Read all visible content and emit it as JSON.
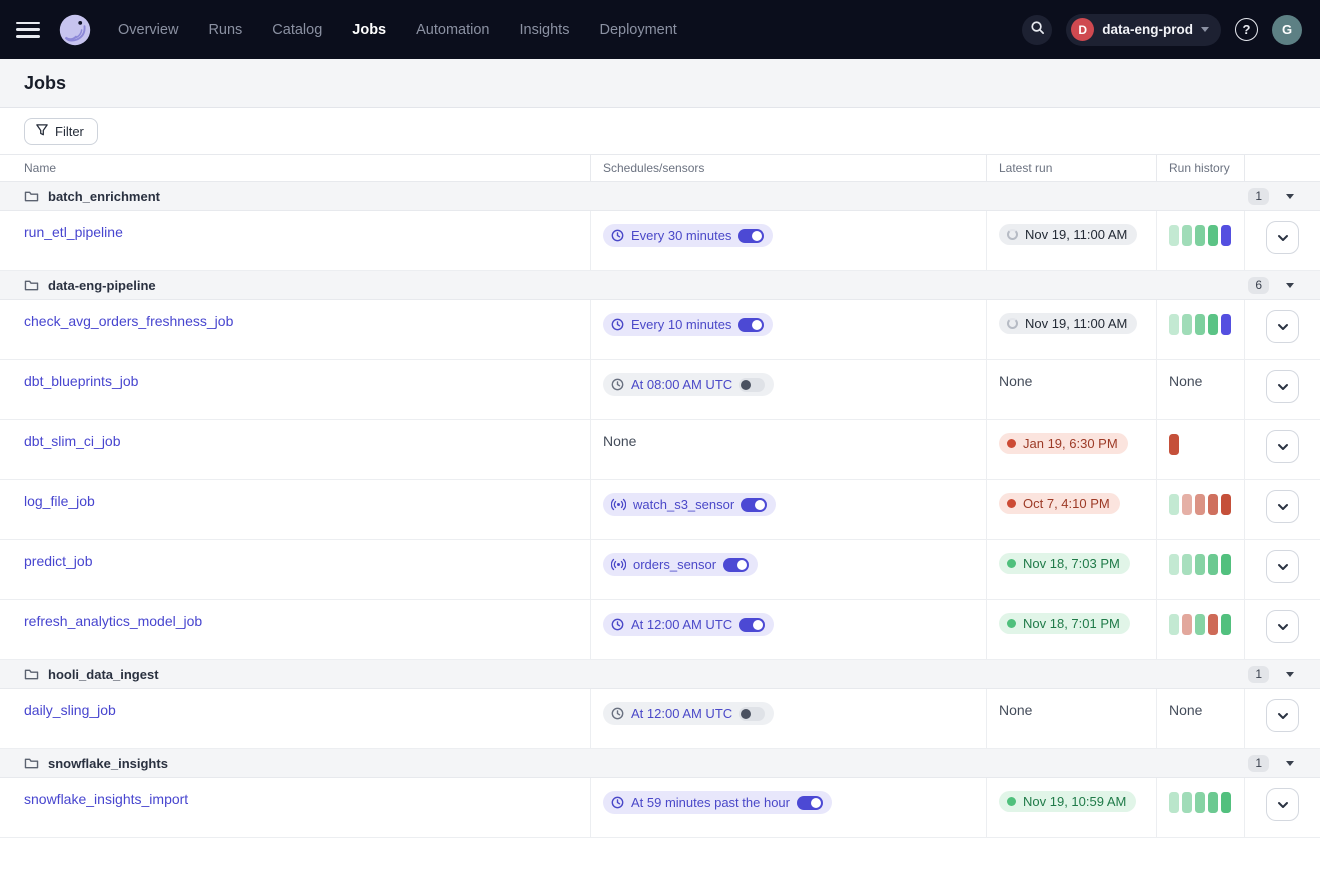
{
  "nav": {
    "items": [
      "Overview",
      "Runs",
      "Catalog",
      "Jobs",
      "Automation",
      "Insights",
      "Deployment"
    ],
    "active_item": "Jobs",
    "deployment": {
      "badge": "D",
      "label": "data-eng-prod"
    },
    "user_initial": "G"
  },
  "page": {
    "title": "Jobs",
    "filter_label": "Filter"
  },
  "table": {
    "columns": {
      "name": "Name",
      "schedules": "Schedules/sensors",
      "latest_run": "Latest run",
      "run_history": "Run history"
    },
    "none_label": "None",
    "groups": [
      {
        "name": "batch_enrichment",
        "count": "1",
        "jobs": [
          {
            "name": "run_etl_pipeline",
            "schedule": {
              "kind": "schedule",
              "label": "Every 30 minutes",
              "enabled": true
            },
            "latest_run": {
              "status": "started",
              "label": "Nov 19, 11:00 AM"
            },
            "history": [
              {
                "color": "green",
                "fade": 0.35
              },
              {
                "color": "green",
                "fade": 0.55
              },
              {
                "color": "green",
                "fade": 0.75
              },
              {
                "color": "green",
                "fade": 0.95
              },
              {
                "color": "blue",
                "fade": 1
              }
            ]
          }
        ]
      },
      {
        "name": "data-eng-pipeline",
        "count": "6",
        "jobs": [
          {
            "name": "check_avg_orders_freshness_job",
            "schedule": {
              "kind": "schedule",
              "label": "Every 10 minutes",
              "enabled": true
            },
            "latest_run": {
              "status": "started",
              "label": "Nov 19, 11:00 AM"
            },
            "history": [
              {
                "color": "green",
                "fade": 0.35
              },
              {
                "color": "green",
                "fade": 0.55
              },
              {
                "color": "green",
                "fade": 0.75
              },
              {
                "color": "green",
                "fade": 0.95
              },
              {
                "color": "blue",
                "fade": 1
              }
            ]
          },
          {
            "name": "dbt_blueprints_job",
            "schedule": {
              "kind": "schedule",
              "label": "At 08:00 AM UTC",
              "enabled": false
            },
            "latest_run": {
              "status": "none"
            },
            "history": null
          },
          {
            "name": "dbt_slim_ci_job",
            "schedule": null,
            "latest_run": {
              "status": "failure",
              "label": "Jan 19, 6:30 PM"
            },
            "history": [
              {
                "color": "red",
                "fade": 1
              }
            ]
          },
          {
            "name": "log_file_job",
            "schedule": {
              "kind": "sensor",
              "label": "watch_s3_sensor",
              "enabled": true
            },
            "latest_run": {
              "status": "failure",
              "label": "Oct 7, 4:10 PM"
            },
            "history": [
              {
                "color": "green",
                "fade": 0.35
              },
              {
                "color": "red",
                "fade": 0.45
              },
              {
                "color": "red",
                "fade": 0.62
              },
              {
                "color": "red",
                "fade": 0.82
              },
              {
                "color": "red",
                "fade": 1
              }
            ]
          },
          {
            "name": "predict_job",
            "schedule": {
              "kind": "sensor",
              "label": "orders_sensor",
              "enabled": true
            },
            "latest_run": {
              "status": "success",
              "label": "Nov 18, 7:03 PM"
            },
            "history": [
              {
                "color": "green",
                "fade": 0.35
              },
              {
                "color": "green",
                "fade": 0.5
              },
              {
                "color": "green",
                "fade": 0.7
              },
              {
                "color": "green",
                "fade": 0.85
              },
              {
                "color": "green",
                "fade": 1
              }
            ]
          },
          {
            "name": "refresh_analytics_model_job",
            "schedule": {
              "kind": "schedule",
              "label": "At 12:00 AM UTC",
              "enabled": true
            },
            "latest_run": {
              "status": "success",
              "label": "Nov 18, 7:01 PM"
            },
            "history": [
              {
                "color": "green",
                "fade": 0.35
              },
              {
                "color": "red",
                "fade": 0.5
              },
              {
                "color": "green",
                "fade": 0.7
              },
              {
                "color": "red",
                "fade": 0.85
              },
              {
                "color": "green",
                "fade": 1
              }
            ]
          }
        ]
      },
      {
        "name": "hooli_data_ingest",
        "count": "1",
        "jobs": [
          {
            "name": "daily_sling_job",
            "schedule": {
              "kind": "schedule",
              "label": "At 12:00 AM UTC",
              "enabled": false
            },
            "latest_run": {
              "status": "none"
            },
            "history": null
          }
        ]
      },
      {
        "name": "snowflake_insights",
        "count": "1",
        "jobs": [
          {
            "name": "snowflake_insights_import",
            "schedule": {
              "kind": "schedule",
              "label": "At 59 minutes past the hour",
              "enabled": true
            },
            "latest_run": {
              "status": "success",
              "label": "Nov 19, 10:59 AM"
            },
            "history": [
              {
                "color": "green",
                "fade": 0.4
              },
              {
                "color": "green",
                "fade": 0.55
              },
              {
                "color": "green",
                "fade": 0.7
              },
              {
                "color": "green",
                "fade": 0.85
              },
              {
                "color": "green",
                "fade": 1
              }
            ]
          }
        ]
      }
    ]
  },
  "colors": {
    "nav_bg": "#0b0e1c",
    "accent_indigo": "#4745cf",
    "bar_green": "#52c07e",
    "bar_red": "#c5503a",
    "bar_blue": "#544fe0",
    "success_dot": "#4fc07c",
    "failure_dot": "#cc4b35",
    "deploy_badge_bg": "#cf4950",
    "avatar_bg": "#5d8084"
  }
}
